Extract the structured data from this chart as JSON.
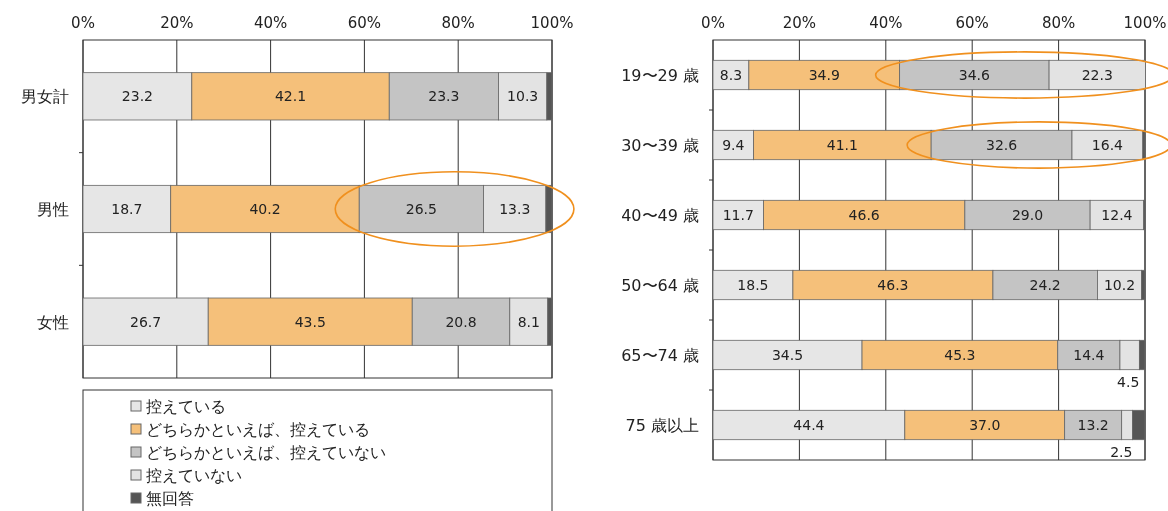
{
  "chart_data": [
    {
      "type": "bar",
      "orientation": "horizontal",
      "stacked": true,
      "categories": [
        "男女計",
        "男性",
        "女性"
      ],
      "xlim": [
        0,
        100
      ],
      "xticks": [
        {
          "value": 0,
          "label": "0%"
        },
        {
          "value": 20,
          "label": "20%"
        },
        {
          "value": 40,
          "label": "40%"
        },
        {
          "value": 60,
          "label": "60%"
        },
        {
          "value": 80,
          "label": "80%"
        },
        {
          "value": 100,
          "label": "100%"
        }
      ],
      "grid": "x",
      "legend": "bottom",
      "series": [
        {
          "name": "控えている",
          "color": "#e6e6e6",
          "values": [
            23.2,
            18.7,
            26.7
          ],
          "value_labels": [
            "23.2",
            "18.7",
            "26.7"
          ]
        },
        {
          "name": "どちらかといえば、控えている",
          "color": "#f5c07a",
          "values": [
            42.1,
            40.2,
            43.5
          ],
          "value_labels": [
            "42.1",
            "40.2",
            "43.5"
          ]
        },
        {
          "name": "どちらかといえば、控えていない",
          "color": "#c4c4c4",
          "values": [
            23.3,
            26.5,
            20.8
          ],
          "value_labels": [
            "23.3",
            "26.5",
            "20.8"
          ]
        },
        {
          "name": "控えていない",
          "color": "#e3e3e3",
          "values": [
            10.3,
            13.3,
            8.1
          ],
          "value_labels": [
            "10.3",
            "13.3",
            "8.1"
          ]
        },
        {
          "name": "無回答",
          "color": "#555555",
          "values": [
            1.1,
            1.3,
            0.9
          ],
          "value_labels": [
            null,
            null,
            null
          ]
        }
      ]
    },
    {
      "type": "bar",
      "orientation": "horizontal",
      "stacked": true,
      "categories": [
        "19〜29 歳",
        "30〜39 歳",
        "40〜49 歳",
        "50〜64 歳",
        "65〜74 歳",
        "75 歳以上"
      ],
      "xlim": [
        0,
        100
      ],
      "xticks": [
        {
          "value": 0,
          "label": "0%"
        },
        {
          "value": 20,
          "label": "20%"
        },
        {
          "value": 40,
          "label": "40%"
        },
        {
          "value": 60,
          "label": "60%"
        },
        {
          "value": 80,
          "label": "80%"
        },
        {
          "value": 100,
          "label": "100%"
        }
      ],
      "grid": "x",
      "series": [
        {
          "color": "#e6e6e6",
          "values": [
            8.3,
            9.4,
            11.7,
            18.5,
            34.5,
            44.4
          ],
          "value_labels": [
            "8.3",
            "9.4",
            "11.7",
            "18.5",
            "34.5",
            "44.4"
          ]
        },
        {
          "color": "#f5c07a",
          "values": [
            34.9,
            41.1,
            46.6,
            46.3,
            45.3,
            37.0
          ],
          "value_labels": [
            "34.9",
            "41.1",
            "46.6",
            "46.3",
            "45.3",
            "37.0"
          ]
        },
        {
          "color": "#c4c4c4",
          "values": [
            34.6,
            32.6,
            29.0,
            24.2,
            14.4,
            13.2
          ],
          "value_labels": [
            "34.6",
            "32.6",
            "29.0",
            "24.2",
            "14.4",
            "13.2"
          ]
        },
        {
          "color": "#e3e3e3",
          "values": [
            22.3,
            16.4,
            12.4,
            10.2,
            4.5,
            2.5
          ],
          "value_labels": [
            "22.3",
            "16.4",
            "12.4",
            "10.2",
            "4.5",
            "2.5"
          ]
        },
        {
          "color": "#555555",
          "values": [
            null,
            0.5,
            0.3,
            0.8,
            1.3,
            2.9
          ],
          "value_labels": [
            null,
            null,
            null,
            null,
            null,
            null
          ]
        }
      ]
    }
  ]
}
